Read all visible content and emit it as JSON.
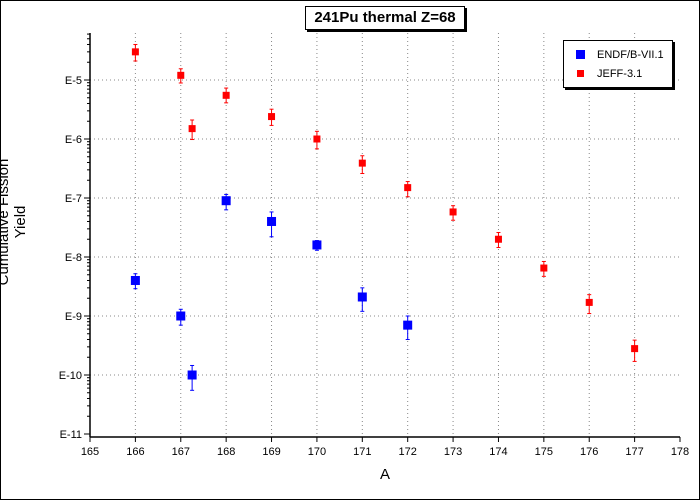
{
  "chart_data": {
    "type": "scatter",
    "title": "241Pu thermal Z=68",
    "xlabel": "A",
    "ylabel": "Cumulative Fission Yield",
    "xlim": [
      165,
      178
    ],
    "ylim": [
      1e-11,
      0.0001
    ],
    "yscale": "log",
    "grid": true,
    "legend_position": "top-right",
    "x_ticks": [
      "165",
      "166",
      "167",
      "168",
      "169",
      "170",
      "171",
      "172",
      "173",
      "174",
      "175",
      "176",
      "177",
      "178"
    ],
    "y_ticks": [
      "E-11",
      "E-10",
      "E-9",
      "E-8",
      "E-7",
      "E-6",
      "E-5"
    ],
    "series": [
      {
        "name": "ENDF/B-VII.1",
        "color": "#0000ff",
        "marker": "square",
        "points": [
          {
            "x": 166,
            "y": 4e-09,
            "lo": 2.9e-09,
            "hi": 5.2e-09
          },
          {
            "x": 167,
            "y": 1e-09,
            "lo": 7e-10,
            "hi": 1.3e-09
          },
          {
            "x": 167.25,
            "y": 1e-10,
            "lo": 5.5e-11,
            "hi": 1.45e-10
          },
          {
            "x": 168,
            "y": 9e-08,
            "lo": 6.3e-08,
            "hi": 1.15e-07
          },
          {
            "x": 169,
            "y": 4e-08,
            "lo": 2.2e-08,
            "hi": 5.8e-08
          },
          {
            "x": 170,
            "y": 1.6e-08,
            "lo": 1.3e-08,
            "hi": 1.9e-08
          },
          {
            "x": 171,
            "y": 2.1e-09,
            "lo": 1.2e-09,
            "hi": 3e-09
          },
          {
            "x": 172,
            "y": 7e-10,
            "lo": 4e-10,
            "hi": 1e-09
          }
        ]
      },
      {
        "name": "JEFF-3.1",
        "color": "#ff0000",
        "marker": "square",
        "points": [
          {
            "x": 166,
            "y": 3e-05,
            "lo": 2.1e-05,
            "hi": 4e-05
          },
          {
            "x": 167,
            "y": 1.2e-05,
            "lo": 8.9e-06,
            "hi": 1.55e-05
          },
          {
            "x": 167.25,
            "y": 1.5e-06,
            "lo": 9.8e-07,
            "hi": 2.1e-06
          },
          {
            "x": 168,
            "y": 5.5e-06,
            "lo": 4.1e-06,
            "hi": 7.3e-06
          },
          {
            "x": 169,
            "y": 2.4e-06,
            "lo": 1.7e-06,
            "hi": 3.2e-06
          },
          {
            "x": 170,
            "y": 1e-06,
            "lo": 6.8e-07,
            "hi": 1.35e-06
          },
          {
            "x": 171,
            "y": 3.9e-07,
            "lo": 2.6e-07,
            "hi": 5.2e-07
          },
          {
            "x": 172,
            "y": 1.5e-07,
            "lo": 1.05e-07,
            "hi": 1.9e-07
          },
          {
            "x": 173,
            "y": 5.8e-08,
            "lo": 4.2e-08,
            "hi": 7.4e-08
          },
          {
            "x": 174,
            "y": 2e-08,
            "lo": 1.45e-08,
            "hi": 2.6e-08
          },
          {
            "x": 175,
            "y": 6.5e-09,
            "lo": 4.7e-09,
            "hi": 8.4e-09
          },
          {
            "x": 176,
            "y": 1.7e-09,
            "lo": 1.1e-09,
            "hi": 2.3e-09
          },
          {
            "x": 177,
            "y": 2.8e-10,
            "lo": 1.7e-10,
            "hi": 3.9e-10
          }
        ]
      }
    ]
  }
}
